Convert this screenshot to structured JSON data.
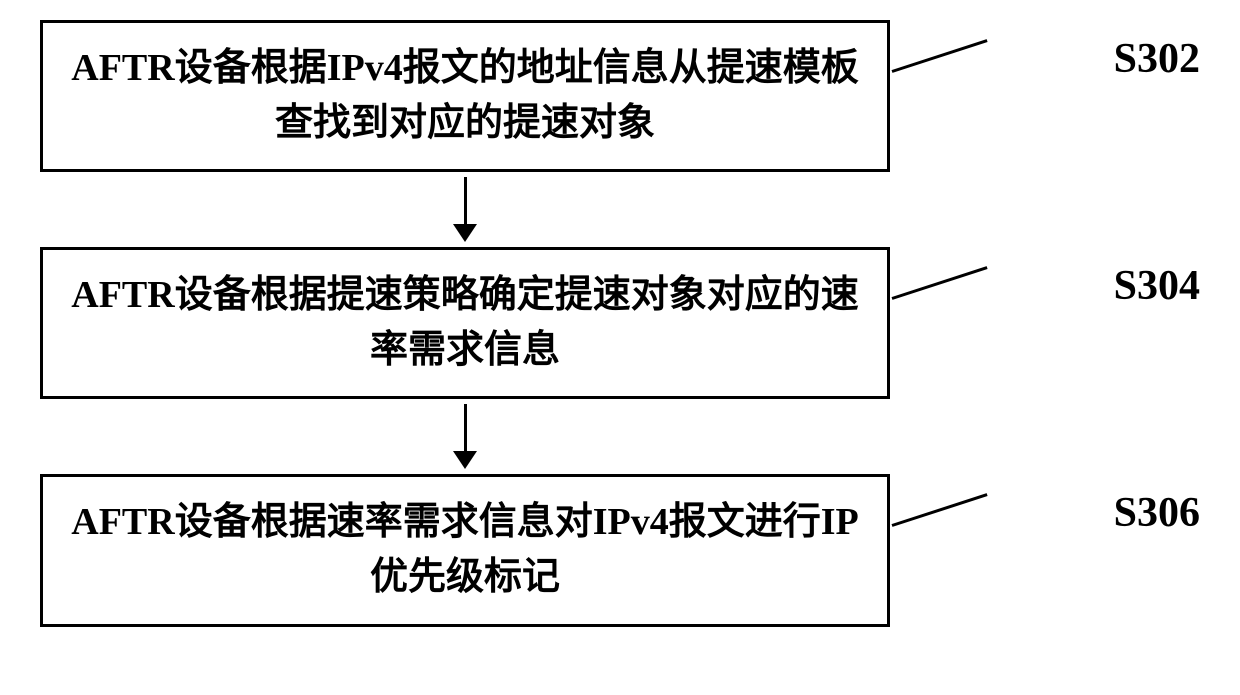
{
  "flowchart": {
    "type": "flowchart",
    "background_color": "#ffffff",
    "border_color": "#000000",
    "border_width": 3,
    "text_color": "#000000",
    "font_family": "SimSun",
    "font_weight": "bold",
    "box_font_size": 38,
    "label_font_size": 42,
    "arrow_color": "#000000",
    "steps": [
      {
        "id": "s302",
        "label": "S302",
        "text": "AFTR设备根据IPv4报文的地址信息从提速模板查找到对应的提速对象"
      },
      {
        "id": "s304",
        "label": "S304",
        "text": "AFTR设备根据提速策略确定提速对象对应的速率需求信息"
      },
      {
        "id": "s306",
        "label": "S306",
        "text": "AFTR设备根据速率需求信息对IPv4报文进行IP优先级标记"
      }
    ]
  }
}
